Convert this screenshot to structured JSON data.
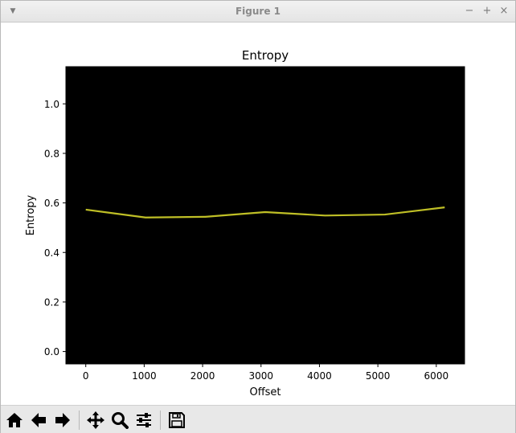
{
  "window": {
    "title": "Figure 1",
    "menu_icon": "chevron-down-icon",
    "minimize_symbol": "−",
    "maximize_symbol": "+",
    "close_symbol": "×"
  },
  "chart_data": {
    "type": "line",
    "title": "Entropy",
    "xlabel": "Offset",
    "ylabel": "Entropy",
    "x": [
      0,
      1024,
      2048,
      3072,
      4096,
      5120,
      6144
    ],
    "series": [
      {
        "values": [
          0.573,
          0.541,
          0.544,
          0.563,
          0.549,
          0.553,
          0.582
        ],
        "color": "#bfbf26"
      }
    ],
    "xlim": [
      -340,
      6484
    ],
    "ylim": [
      -0.05,
      1.15
    ],
    "xticks": [
      0,
      1000,
      2000,
      3000,
      4000,
      5000,
      6000
    ],
    "xtick_labels": [
      "0",
      "1000",
      "2000",
      "3000",
      "4000",
      "5000",
      "6000"
    ],
    "yticks": [
      0.0,
      0.2,
      0.4,
      0.6,
      0.8,
      1.0
    ],
    "ytick_labels": [
      "0.0",
      "0.2",
      "0.4",
      "0.6",
      "0.8",
      "1.0"
    ],
    "axes_background": "#000000",
    "grid": false,
    "legend": "none"
  },
  "toolbar": {
    "items": [
      {
        "icon": "home-icon",
        "label": "Home"
      },
      {
        "icon": "arrow-left-icon",
        "label": "Back"
      },
      {
        "icon": "arrow-right-icon",
        "label": "Forward"
      },
      {
        "icon": "pan-icon",
        "label": "Pan"
      },
      {
        "icon": "zoom-icon",
        "label": "Zoom"
      },
      {
        "icon": "sliders-icon",
        "label": "Configure subplots"
      },
      {
        "icon": "save-icon",
        "label": "Save"
      }
    ]
  }
}
